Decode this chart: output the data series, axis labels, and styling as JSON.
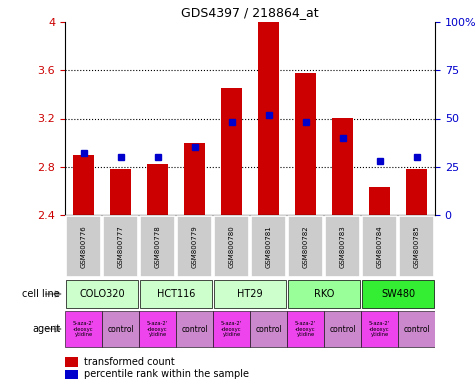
{
  "title": "GDS4397 / 218864_at",
  "samples": [
    "GSM800776",
    "GSM800777",
    "GSM800778",
    "GSM800779",
    "GSM800780",
    "GSM800781",
    "GSM800782",
    "GSM800783",
    "GSM800784",
    "GSM800785"
  ],
  "transformed_counts": [
    2.9,
    2.78,
    2.82,
    3.0,
    3.45,
    4.0,
    3.58,
    3.2,
    2.63,
    2.78
  ],
  "percentile_ranks": [
    32,
    30,
    30,
    35,
    48,
    52,
    48,
    40,
    28,
    30
  ],
  "ylim_left": [
    2.4,
    4.0
  ],
  "ylim_right": [
    0,
    100
  ],
  "yticks_left": [
    2.4,
    2.8,
    3.2,
    3.6,
    4.0
  ],
  "ytick_labels_left": [
    "2.4",
    "2.8",
    "3.2",
    "3.6",
    "4"
  ],
  "yticks_right": [
    0,
    25,
    50,
    75,
    100
  ],
  "ytick_labels_right": [
    "0",
    "25",
    "50",
    "75",
    "100%"
  ],
  "bar_color": "#cc0000",
  "dot_color": "#0000cc",
  "cell_lines": [
    {
      "label": "COLO320",
      "start": 0,
      "end": 2,
      "color": "#ccffcc"
    },
    {
      "label": "HCT116",
      "start": 2,
      "end": 4,
      "color": "#ccffcc"
    },
    {
      "label": "HT29",
      "start": 4,
      "end": 6,
      "color": "#ccffcc"
    },
    {
      "label": "RKO",
      "start": 6,
      "end": 8,
      "color": "#99ff99"
    },
    {
      "label": "SW480",
      "start": 8,
      "end": 10,
      "color": "#33ee33"
    }
  ],
  "agent_aza_label": "5-aza-2'\n-deoxyc\nytidine",
  "agent_ctrl_label": "control",
  "agent_aza_color": "#ee44ee",
  "agent_ctrl_color": "#cc88cc",
  "sample_bg_color": "#cccccc",
  "left_label_color": "#cc0000",
  "right_label_color": "#0000cc",
  "dotted_lines": [
    2.8,
    3.2,
    3.6
  ],
  "bar_width": 0.55
}
